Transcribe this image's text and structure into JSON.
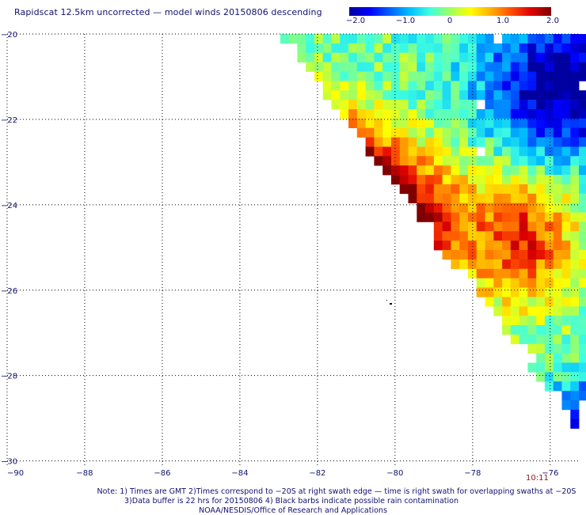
{
  "title": "Rapidscat 12.5km uncorrected — model winds 20150806 descending",
  "colorbar": {
    "min": -2.0,
    "max": 2.0,
    "tick_labels": [
      "−2.0",
      "−1.0",
      "0",
      "1.0",
      "2.0"
    ],
    "tick_values": [
      -2.0,
      -1.0,
      0,
      1.0,
      2.0
    ],
    "colors": [
      "#0000a0",
      "#0000ff",
      "#0060ff",
      "#00c0ff",
      "#40ffe0",
      "#a0ff60",
      "#ffff00",
      "#ffb000",
      "#ff5000",
      "#e00000",
      "#800000"
    ]
  },
  "map": {
    "lon_range": [
      -90,
      -75
    ],
    "lat_range": [
      -30,
      -20
    ],
    "x_ticks": [
      "−90",
      "−88",
      "−86",
      "−84",
      "−82",
      "−80",
      "−78",
      "−76"
    ],
    "x_tick_values": [
      -90,
      -88,
      -86,
      -84,
      -82,
      -80,
      -78,
      -76
    ],
    "y_ticks": [
      "−20",
      "−22",
      "−24",
      "−26",
      "−28",
      "−30"
    ],
    "y_tick_values": [
      -20,
      -22,
      -24,
      -26,
      -28,
      -30
    ],
    "grid": "dotted",
    "swath_edge": [
      [
        -82.8,
        -20.2
      ],
      [
        -74.9,
        -29.6
      ]
    ],
    "hotspot": [
      -80.2,
      -23.8
    ],
    "secondary_peak": [
      -76.6,
      -24.8
    ],
    "low_zone": [
      -75.5,
      -21.2
    ],
    "time_label": "10:11"
  },
  "notes": {
    "line1": "Note: 1) Times are GMT 2)Times correspond to −20S at right swath edge — time is right swath for overlapping swaths at −20S",
    "line2": "3)Data buffer is 22 hrs for 20150806 4) Black barbs indicate possible rain contamination",
    "line3": "NOAA/NESDIS/Office of Research and Applications"
  }
}
